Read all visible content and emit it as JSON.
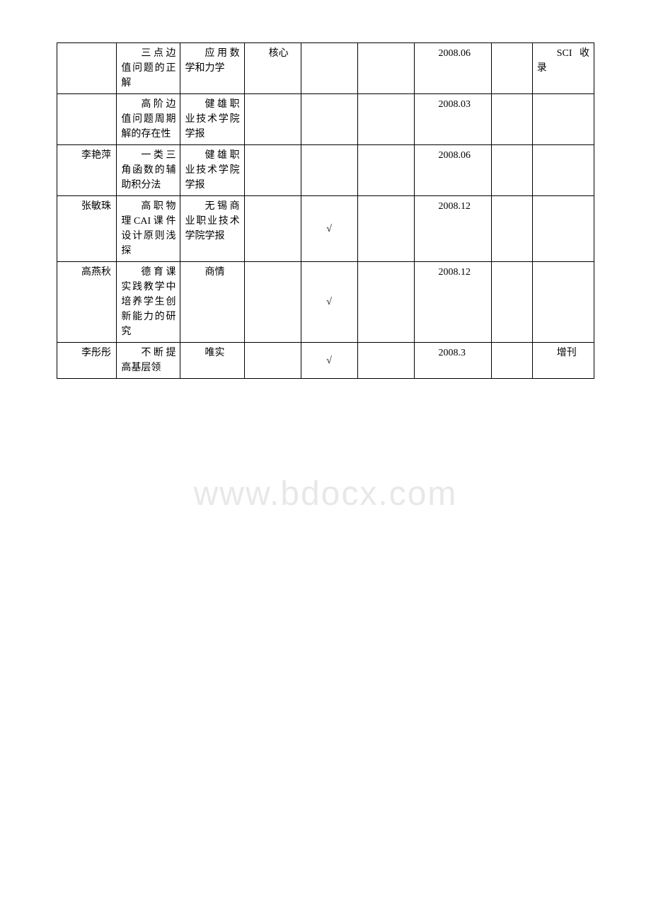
{
  "watermark": "www.bdocx.com",
  "rows": [
    {
      "author": "",
      "title": "三点边值问题的正解",
      "journal": "应用数学和力学",
      "level": "核心",
      "check": "",
      "date": "2008.06",
      "note": "SCI收录"
    },
    {
      "author": "",
      "title": "高阶边值问题周期解的存在性",
      "journal": "健雄职业技术学院学报",
      "level": "",
      "check": "",
      "date": "2008.03",
      "note": ""
    },
    {
      "author": "李艳萍",
      "title": "一类三角函数的辅助积分法",
      "journal": "健雄职业技术学院学报",
      "level": "",
      "check": "",
      "date": "2008.06",
      "note": ""
    },
    {
      "author": "张敏珠",
      "title": "高职物理CAI课件设计原则浅探",
      "journal": "无锡商业职业技术学院学报",
      "level": "",
      "check": "√",
      "date": "2008.12",
      "note": ""
    },
    {
      "author": "高燕秋",
      "title": "德育课实践教学中培养学生创新能力的研究",
      "journal": "商情",
      "level": "",
      "check": "√",
      "date": "2008.12",
      "note": ""
    },
    {
      "author": "李彤彤",
      "title": "不断提高基层领",
      "journal": "唯实",
      "level": "",
      "check": "√",
      "date": "2008.3",
      "note": "增刊"
    }
  ]
}
